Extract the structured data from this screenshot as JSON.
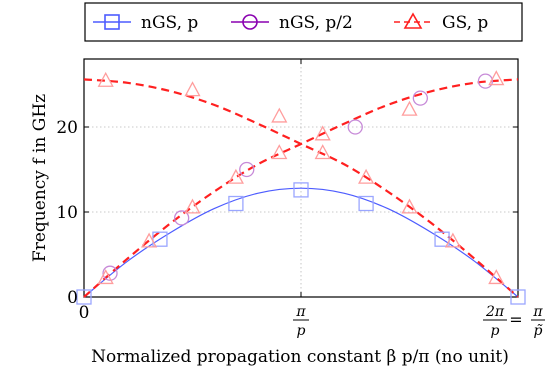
{
  "chart_data": {
    "type": "line",
    "xlabel": "Normalized propagation constant β p/π (no unit)",
    "ylabel": "Frequency f in GHz",
    "xlim": [
      0,
      2
    ],
    "ylim": [
      0,
      28
    ],
    "grid": true,
    "legend_placement": "top",
    "x_ticks": [
      {
        "value": 0,
        "label": "0"
      },
      {
        "value": 1,
        "label": "π/p"
      },
      {
        "value": 2,
        "label": "2π/p = π/p̃"
      }
    ],
    "y_ticks": [
      {
        "value": 0,
        "label": "0"
      },
      {
        "value": 10,
        "label": "10"
      },
      {
        "value": 20,
        "label": "20"
      }
    ],
    "series": [
      {
        "name": "nGS, p",
        "color": "#4d5cff",
        "marker": "square",
        "line": "solid",
        "curves": [
          {
            "x": [
              0,
              0.2,
              0.4,
              0.6,
              0.8,
              1.0,
              1.2,
              1.4,
              1.6,
              1.8,
              2.0
            ],
            "y": [
              0,
              4.2,
              7.6,
              10.4,
              12.2,
              12.8,
              12.2,
              10.4,
              7.6,
              4.2,
              0
            ]
          }
        ],
        "marker_points": {
          "x": [
            0,
            0.35,
            0.7,
            1.0,
            1.3,
            1.65,
            2.0
          ],
          "y": [
            0,
            6.8,
            11.0,
            12.6,
            11.0,
            6.8,
            0
          ]
        }
      },
      {
        "name": "nGS, p/2",
        "color": "#8a00b0",
        "marker": "circle",
        "line": "solid",
        "marker_points": {
          "x": [
            0.12,
            0.45,
            0.75,
            1.25,
            1.55,
            1.85
          ],
          "y": [
            2.8,
            9.3,
            15.0,
            20.0,
            23.4,
            25.4
          ]
        }
      },
      {
        "name": "GS, p",
        "color": "#ff2020",
        "marker": "triangle",
        "line": "dashed",
        "curves": [
          {
            "x": [
              0,
              0.2,
              0.4,
              0.6,
              0.8,
              1.0,
              1.2,
              1.4,
              1.6,
              1.8,
              2.0
            ],
            "y": [
              0,
              4.5,
              8.7,
              12.4,
              15.6,
              18.0,
              20.4,
              22.6,
              24.2,
              25.2,
              25.6
            ]
          },
          {
            "x": [
              0,
              0.2,
              0.4,
              0.6,
              0.8,
              1.0,
              1.2,
              1.4,
              1.6,
              1.8,
              2.0
            ],
            "y": [
              25.6,
              25.2,
              24.2,
              22.6,
              20.4,
              18.0,
              15.6,
              12.4,
              8.7,
              4.5,
              0
            ]
          }
        ],
        "marker_points": {
          "x": [
            0.1,
            0.3,
            0.5,
            0.7,
            0.9,
            1.1,
            1.3,
            1.5,
            1.7,
            1.9,
            0.1,
            0.5,
            0.9,
            1.1,
            1.5,
            1.9
          ],
          "y": [
            2.3,
            6.6,
            10.6,
            14.1,
            17.0,
            17.0,
            14.1,
            10.6,
            6.6,
            2.3,
            25.5,
            24.4,
            21.3,
            19.2,
            22.1,
            25.7
          ]
        }
      }
    ]
  }
}
